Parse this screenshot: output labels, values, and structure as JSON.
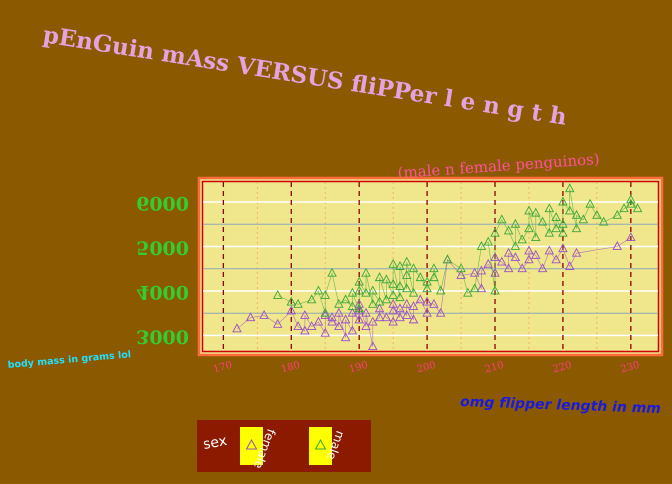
{
  "chart_data": {
    "type": "scatter",
    "title": "pEnGuin mAss VERSUS fliPPer l e n g t h",
    "subtitle": "(male n female penguinos)",
    "xlabel": "omg flipper length in mm",
    "ylabel": "body mass in grams lol",
    "xlim": [
      167,
      234
    ],
    "ylim": [
      2650,
      6450
    ],
    "x_ticks": [
      170,
      180,
      190,
      200,
      210,
      220,
      230
    ],
    "x_tick_labels": [
      "170",
      "180",
      "190",
      "200",
      "210",
      "220",
      "230"
    ],
    "y_ticks": [
      3000,
      4000,
      5000,
      6000
    ],
    "y_tick_labels": [
      "3000",
      "4000",
      "5000",
      "6000"
    ],
    "grid": true,
    "legend": {
      "title": "sex",
      "position": "bottom-left",
      "entries": [
        "female",
        "male"
      ]
    },
    "series": [
      {
        "name": "female",
        "color": "#9b4fc8",
        "points": [
          [
            172,
            3150
          ],
          [
            174,
            3400
          ],
          [
            176,
            3450
          ],
          [
            178,
            3250
          ],
          [
            180,
            3550
          ],
          [
            181,
            3200
          ],
          [
            182,
            3450
          ],
          [
            182,
            3100
          ],
          [
            183,
            3200
          ],
          [
            184,
            3300
          ],
          [
            185,
            3050
          ],
          [
            185,
            3450
          ],
          [
            186,
            3400
          ],
          [
            186,
            3300
          ],
          [
            187,
            3200
          ],
          [
            187,
            3500
          ],
          [
            188,
            3350
          ],
          [
            188,
            2950
          ],
          [
            189,
            3500
          ],
          [
            189,
            3100
          ],
          [
            190,
            3350
          ],
          [
            190,
            3550
          ],
          [
            190,
            3700
          ],
          [
            191,
            3200
          ],
          [
            191,
            3500
          ],
          [
            192,
            3300
          ],
          [
            192,
            2750
          ],
          [
            193,
            3600
          ],
          [
            193,
            3400
          ],
          [
            194,
            3400
          ],
          [
            195,
            3550
          ],
          [
            195,
            3300
          ],
          [
            195,
            3700
          ],
          [
            196,
            3400
          ],
          [
            196,
            3600
          ],
          [
            197,
            3450
          ],
          [
            197,
            3700
          ],
          [
            198,
            3650
          ],
          [
            198,
            3350
          ],
          [
            199,
            3800
          ],
          [
            200,
            3500
          ],
          [
            200,
            3750
          ],
          [
            201,
            3700
          ],
          [
            202,
            3500
          ],
          [
            203,
            4700
          ],
          [
            205,
            4350
          ],
          [
            207,
            4400
          ],
          [
            208,
            4050
          ],
          [
            208,
            4450
          ],
          [
            209,
            4600
          ],
          [
            210,
            4400
          ],
          [
            210,
            4750
          ],
          [
            211,
            4650
          ],
          [
            212,
            4500
          ],
          [
            212,
            4850
          ],
          [
            213,
            4750
          ],
          [
            214,
            4500
          ],
          [
            215,
            4900
          ],
          [
            215,
            4700
          ],
          [
            216,
            4800
          ],
          [
            217,
            4500
          ],
          [
            218,
            4900
          ],
          [
            219,
            4700
          ],
          [
            220,
            4950
          ],
          [
            221,
            4550
          ],
          [
            222,
            4850
          ],
          [
            228,
            5000
          ],
          [
            230,
            5200
          ]
        ]
      },
      {
        "name": "male",
        "color": "#39a83a",
        "points": [
          [
            178,
            3900
          ],
          [
            180,
            3750
          ],
          [
            181,
            3700
          ],
          [
            183,
            3800
          ],
          [
            184,
            4000
          ],
          [
            185,
            3500
          ],
          [
            185,
            3900
          ],
          [
            186,
            4400
          ],
          [
            187,
            3700
          ],
          [
            188,
            3800
          ],
          [
            189,
            3650
          ],
          [
            189,
            3950
          ],
          [
            190,
            4000
          ],
          [
            190,
            3600
          ],
          [
            190,
            4200
          ],
          [
            191,
            3950
          ],
          [
            191,
            4400
          ],
          [
            192,
            4000
          ],
          [
            192,
            3700
          ],
          [
            193,
            4300
          ],
          [
            193,
            3750
          ],
          [
            194,
            3800
          ],
          [
            194,
            4250
          ],
          [
            195,
            3900
          ],
          [
            195,
            4150
          ],
          [
            195,
            4600
          ],
          [
            196,
            4100
          ],
          [
            196,
            3850
          ],
          [
            196,
            4550
          ],
          [
            197,
            4050
          ],
          [
            197,
            4350
          ],
          [
            197,
            4650
          ],
          [
            198,
            3950
          ],
          [
            198,
            4500
          ],
          [
            199,
            4300
          ],
          [
            200,
            4200
          ],
          [
            200,
            4050
          ],
          [
            201,
            4300
          ],
          [
            201,
            4500
          ],
          [
            202,
            4000
          ],
          [
            203,
            4700
          ],
          [
            205,
            4500
          ],
          [
            206,
            3950
          ],
          [
            207,
            4050
          ],
          [
            208,
            5000
          ],
          [
            209,
            5100
          ],
          [
            210,
            4000
          ],
          [
            210,
            5300
          ],
          [
            211,
            5600
          ],
          [
            212,
            5350
          ],
          [
            213,
            5000
          ],
          [
            213,
            5500
          ],
          [
            214,
            5150
          ],
          [
            215,
            5800
          ],
          [
            215,
            5400
          ],
          [
            216,
            5200
          ],
          [
            216,
            5750
          ],
          [
            217,
            5550
          ],
          [
            218,
            5300
          ],
          [
            218,
            5850
          ],
          [
            219,
            5400
          ],
          [
            219,
            5650
          ],
          [
            220,
            5500
          ],
          [
            220,
            6000
          ],
          [
            220,
            5300
          ],
          [
            221,
            5800
          ],
          [
            221,
            6300
          ],
          [
            222,
            5400
          ],
          [
            222,
            5700
          ],
          [
            223,
            5600
          ],
          [
            224,
            5950
          ],
          [
            225,
            5700
          ],
          [
            226,
            5550
          ],
          [
            228,
            5700
          ],
          [
            229,
            5850
          ],
          [
            230,
            5950
          ],
          [
            230,
            6050
          ],
          [
            231,
            5850
          ]
        ]
      }
    ]
  }
}
